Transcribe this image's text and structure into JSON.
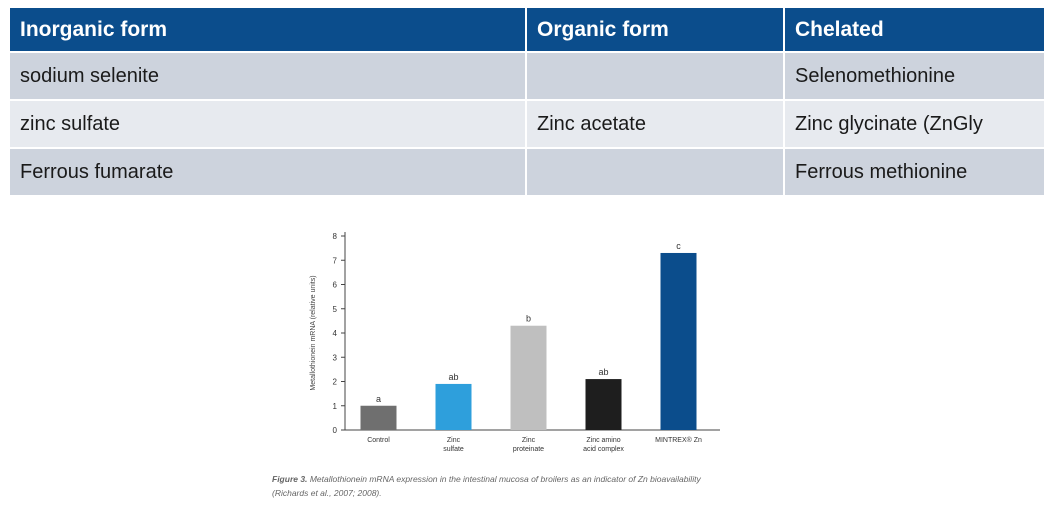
{
  "table": {
    "headers": [
      "Inorganic form",
      "Organic form",
      "Chelated"
    ],
    "rows": [
      [
        "sodium selenite",
        "",
        "Selenomethionine"
      ],
      [
        "zinc sulfate",
        "Zinc acetate",
        "Zinc glycinate (ZnGly"
      ],
      [
        "Ferrous fumarate",
        "",
        "Ferrous methionine"
      ]
    ]
  },
  "chart_data": {
    "type": "bar",
    "ylabel": "Metallothionein mRNA (relative units)",
    "ylim": [
      0,
      8
    ],
    "yticks": [
      "0",
      "1",
      "2",
      "3",
      "4",
      "5",
      "6",
      "7",
      "8"
    ],
    "categories": [
      "Control",
      "Zinc sulfate",
      "Zinc proteinate",
      "Zinc amino acid complex",
      "MINTREX® Zn"
    ],
    "category_label_lines": [
      [
        "Control"
      ],
      [
        "Zinc",
        "sulfate"
      ],
      [
        "Zinc",
        "proteinate"
      ],
      [
        "Zinc amino",
        "acid complex"
      ],
      [
        "MINTREX® Zn"
      ]
    ],
    "values": [
      1.0,
      1.9,
      4.3,
      2.1,
      7.3
    ],
    "significance_labels": [
      "a",
      "ab",
      "b",
      "ab",
      "c"
    ],
    "colors": [
      "#6f6f6f",
      "#2e9fdc",
      "#bfbfbf",
      "#1e1e1e",
      "#0b4d8c"
    ],
    "grid": false
  },
  "caption": {
    "label": "Figure 3.",
    "text": "Metallothionein mRNA expression in the intestinal mucosa of broilers as an indicator of Zn bioavailability (Richards et al., 2007; 2008)."
  }
}
